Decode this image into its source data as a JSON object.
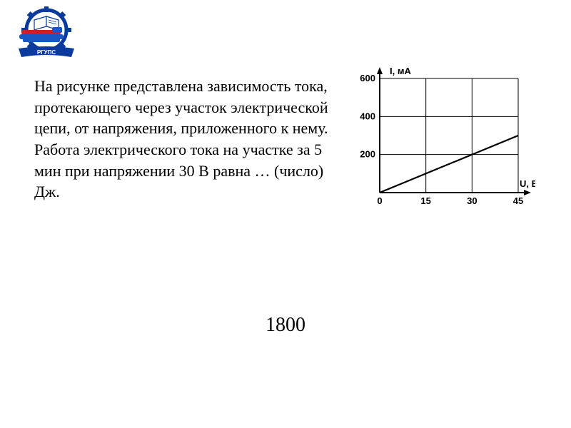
{
  "logo": {
    "banner_label": "РГУПС",
    "gear_color": "#0a3a9c",
    "banner_color": "#0a3a9c",
    "book_color": "#0a3a9c",
    "train_red": "#d01f1f",
    "train_blue": "#1a56c4"
  },
  "problem": {
    "line1": "На рисунке представлена зависимость тока, протекающего через участок электрической цепи, от напряжения, приложенного к нему.",
    "line2": "Работа электрического тока на участке за 5 мин при напряжении 30 В равна … (число) Дж."
  },
  "chart": {
    "type": "line",
    "y_axis_label": "I, мА",
    "x_axis_label": "U, B",
    "x_ticks": [
      0,
      15,
      30,
      45
    ],
    "y_ticks": [
      200,
      400,
      600
    ],
    "xlim": [
      0,
      45
    ],
    "ylim": [
      0,
      600
    ],
    "grid_cols": 3,
    "grid_rows": 3,
    "line_points": [
      [
        0,
        0
      ],
      [
        45,
        300
      ]
    ],
    "axis_color": "#000000",
    "line_color": "#000000",
    "grid_color": "#000000",
    "background_color": "#ffffff",
    "axis_width": 2.0,
    "line_width": 2.2,
    "grid_width": 1.0,
    "tick_font_size": 13,
    "axis_label_font_size": 13,
    "axis_label_font_weight": "bold"
  },
  "answer": "1800"
}
